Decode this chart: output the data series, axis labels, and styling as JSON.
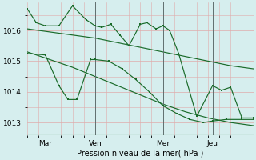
{
  "xlabel": "Pression niveau de la mer( hPa )",
  "ylim": [
    1012.6,
    1016.9
  ],
  "xlim": [
    0,
    100
  ],
  "yticks": [
    1013,
    1014,
    1015,
    1016
  ],
  "xtick_positions": [
    8,
    30,
    60,
    82
  ],
  "xtick_labels": [
    "Mar",
    "Ven",
    "Mer",
    "Jeu"
  ],
  "vline_positions": [
    8,
    30,
    60,
    82
  ],
  "bg_color": "#d6eeee",
  "grid_color": "#e0aaaa",
  "line_color": "#1a6b2a",
  "line1_x": [
    0,
    10,
    20,
    30,
    40,
    50,
    60,
    70,
    80,
    90,
    100
  ],
  "line1_y": [
    1016.05,
    1015.95,
    1015.85,
    1015.75,
    1015.6,
    1015.45,
    1015.3,
    1015.15,
    1015.0,
    1014.85,
    1014.75
  ],
  "line2_x": [
    0,
    10,
    20,
    30,
    40,
    50,
    60,
    70,
    80,
    90,
    100
  ],
  "line2_y": [
    1015.3,
    1015.05,
    1014.8,
    1014.5,
    1014.2,
    1013.9,
    1013.6,
    1013.35,
    1013.15,
    1013.0,
    1012.9
  ],
  "line3_x": [
    0,
    4,
    8,
    14,
    20,
    26,
    30,
    33,
    37,
    41,
    45,
    50,
    53,
    57,
    60,
    63,
    67,
    75,
    82,
    86,
    90,
    95,
    100
  ],
  "line3_y": [
    1016.7,
    1016.25,
    1016.15,
    1016.15,
    1016.8,
    1016.35,
    1016.15,
    1016.1,
    1016.2,
    1015.85,
    1015.5,
    1016.2,
    1016.25,
    1016.05,
    1016.15,
    1016.0,
    1015.25,
    1013.2,
    1014.2,
    1014.05,
    1014.15,
    1013.15,
    1013.15
  ],
  "line4_x": [
    0,
    8,
    14,
    18,
    22,
    28,
    30,
    36,
    42,
    48,
    54,
    60,
    66,
    72,
    78,
    82,
    88,
    95,
    100
  ],
  "line4_y": [
    1015.25,
    1015.2,
    1014.2,
    1013.75,
    1013.75,
    1015.05,
    1015.05,
    1015.0,
    1014.75,
    1014.4,
    1014.0,
    1013.55,
    1013.3,
    1013.1,
    1013.0,
    1013.05,
    1013.1,
    1013.1,
    1013.1
  ]
}
